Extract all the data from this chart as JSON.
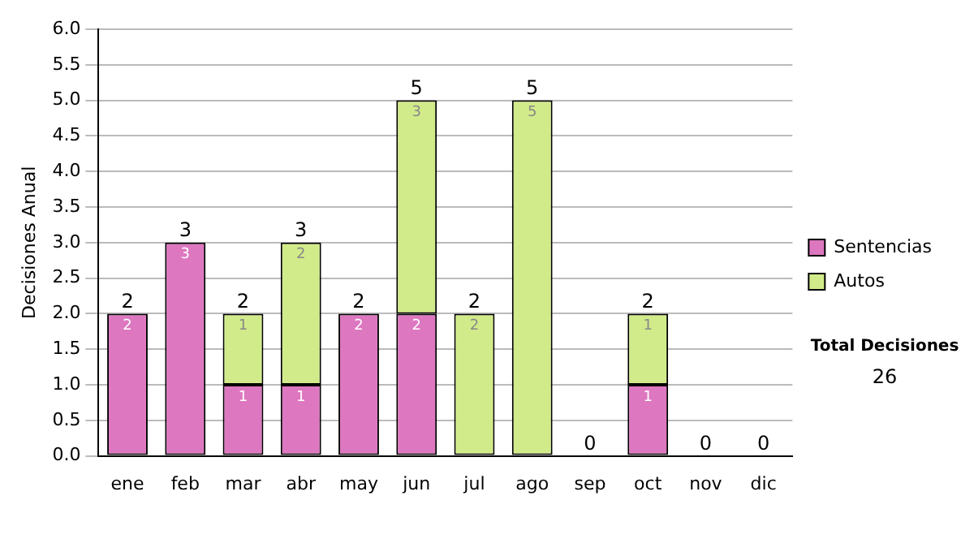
{
  "chart_data": {
    "type": "bar",
    "ylabel": "Decisiones Anual",
    "categories": [
      "ene",
      "feb",
      "mar",
      "abr",
      "may",
      "jun",
      "jul",
      "ago",
      "sep",
      "oct",
      "nov",
      "dic"
    ],
    "series": [
      {
        "name": "Sentencias",
        "color": "#dd77c0",
        "values": [
          2,
          3,
          1,
          1,
          2,
          2,
          0,
          0,
          0,
          1,
          0,
          0
        ],
        "value_labels": [
          "2",
          "3",
          "1",
          "1",
          "2",
          "2",
          null,
          null,
          null,
          "1",
          null,
          null
        ]
      },
      {
        "name": "Autos",
        "color": "#d2eb8a",
        "values": [
          0,
          0,
          1,
          2,
          0,
          3,
          2,
          5,
          0,
          1,
          0,
          0
        ],
        "value_labels": [
          null,
          null,
          "1",
          "2",
          null,
          "3",
          "2",
          "5",
          null,
          "1",
          null,
          null
        ]
      }
    ],
    "stacked": true,
    "totals": [
      "2",
      "3",
      "2",
      "3",
      "2",
      "5",
      "2",
      "5",
      "0",
      "2",
      "0",
      "0"
    ],
    "ylim": [
      0,
      6
    ],
    "yticks": [
      {
        "value": 0,
        "label": "0.0"
      },
      {
        "value": 0.5,
        "label": "0.5"
      },
      {
        "value": 1,
        "label": "1.0"
      },
      {
        "value": 1.5,
        "label": "1.5"
      },
      {
        "value": 2,
        "label": "2.0"
      },
      {
        "value": 2.5,
        "label": "2.5"
      },
      {
        "value": 3,
        "label": "3.0"
      },
      {
        "value": 3.5,
        "label": "3.5"
      },
      {
        "value": 4,
        "label": "4.0"
      },
      {
        "value": 4.5,
        "label": "4.5"
      },
      {
        "value": 5,
        "label": "5.0"
      },
      {
        "value": 5.5,
        "label": "5.5"
      },
      {
        "value": 6,
        "label": "6.0"
      }
    ],
    "grid": "y",
    "legend": "right",
    "annotations": [
      "Total Decisiones",
      "26"
    ]
  }
}
